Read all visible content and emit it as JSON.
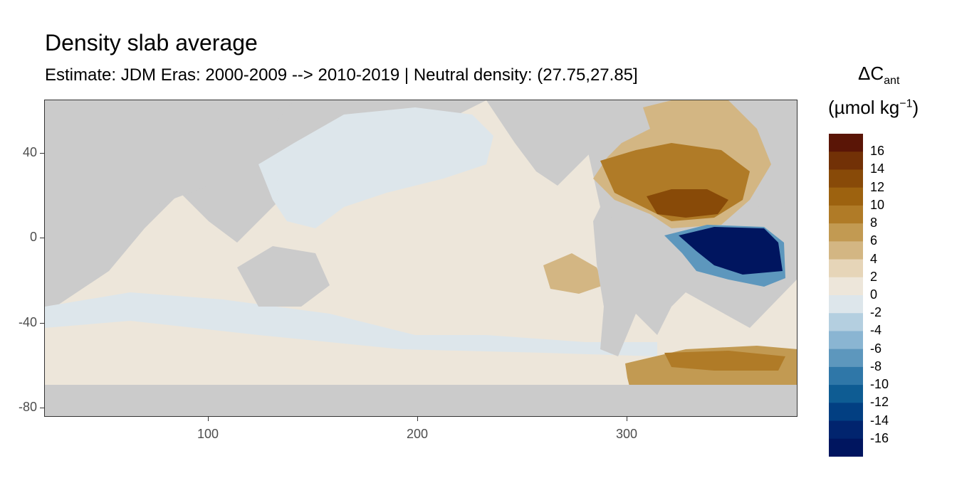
{
  "title": "Density slab average",
  "subtitle": "Estimate: JDM Eras: 2000-2009 --> 2010-2019 | Neutral density: (27.75,27.85]",
  "legend": {
    "title_main": "ΔC",
    "title_sub": "ant",
    "unit_prefix": "(µmol kg",
    "unit_sup": "−1",
    "unit_suffix": ")",
    "labels": [
      "16",
      "14",
      "12",
      "10",
      "8",
      "6",
      "4",
      "2",
      "0",
      "-2",
      "-4",
      "-6",
      "-8",
      "-10",
      "-12",
      "-14",
      "-16"
    ],
    "colors": [
      "#5a1506",
      "#723106",
      "#884a08",
      "#9d620f",
      "#b07b27",
      "#c29a52",
      "#d3b683",
      "#e6d5b8",
      "#ede6da",
      "#dde6eb",
      "#b4cfe0",
      "#8ab5d2",
      "#5d97bd",
      "#2f77a8",
      "#0e5c93",
      "#023f82",
      "#01246e",
      "#00155f"
    ]
  },
  "axes": {
    "x_ticks": [
      "100",
      "200",
      "300"
    ],
    "y_ticks": [
      "40",
      "0",
      "-40",
      "-80"
    ],
    "xlim": [
      20,
      380
    ],
    "ylim": [
      -85,
      65
    ]
  },
  "map": {
    "land_color": "#cbcbcb",
    "nodata_color": "#ffffff",
    "regions": [
      {
        "name": "South Atlantic equatorial negative anomaly",
        "value": -16
      },
      {
        "name": "North Atlantic subtropical positive anomaly",
        "value": 12
      },
      {
        "name": "Southern Ocean Atlantic sector positive anomaly",
        "value": 6
      },
      {
        "name": "North Pacific slight negative",
        "value": -1
      },
      {
        "name": "Indo-Pacific slight positive",
        "value": 1
      }
    ]
  }
}
